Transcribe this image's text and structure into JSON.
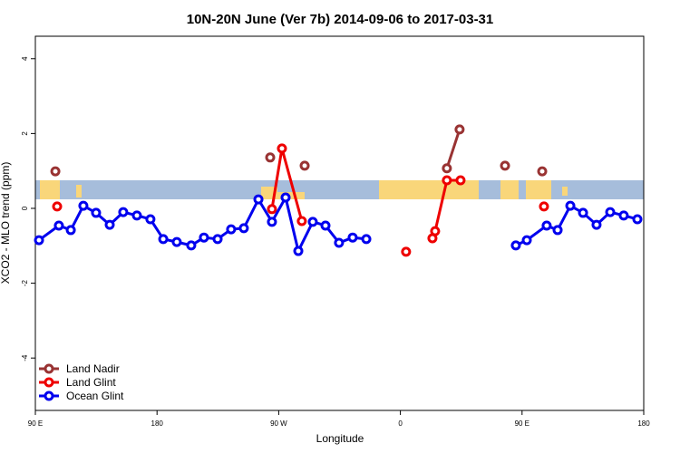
{
  "chart_data": {
    "type": "line",
    "title": "10N-20N June (Ver 7b)   2014-09-06 to 2017-03-31",
    "x_label": "Longitude",
    "y_label": "XCO2 - MLO trend (ppm)",
    "xlim": [
      90,
      540
    ],
    "ylim": [
      -5.4,
      4.6
    ],
    "xticks": [
      {
        "value": 90,
        "label": "90 E"
      },
      180,
      {
        "value": 270,
        "label": "90 W"
      },
      {
        "value": 360,
        "label": "0"
      },
      {
        "value": 450,
        "label": "90 E"
      },
      {
        "value": 540,
        "label": "180"
      }
    ],
    "yticks": [
      -4,
      -2,
      0,
      2,
      4
    ],
    "legend": "bottom-left",
    "series": [
      {
        "name": "Land Nadir",
        "color": "#993333",
        "x": [
          104.8,
          null,
          263.7,
          null,
          289.2,
          null,
          394.4,
          403.8,
          null,
          437.4,
          null,
          464.9
        ],
        "values": [
          0.99,
          null,
          1.36,
          null,
          1.14,
          null,
          1.07,
          2.11,
          null,
          1.14,
          null,
          0.99
        ]
      },
      {
        "name": "Land Glint",
        "color": "#ee0000",
        "x": [
          106.1,
          null,
          265.0,
          272.4,
          287.1,
          null,
          364.2,
          null,
          383.7,
          385.7,
          394.4,
          404.5,
          null,
          466.2
        ],
        "values": [
          0.05,
          null,
          -0.02,
          1.6,
          -0.34,
          null,
          -1.16,
          null,
          -0.8,
          -0.61,
          0.75,
          0.75,
          null,
          0.05
        ]
      },
      {
        "name": "Ocean Glint",
        "color": "#0000ee",
        "x": [
          92.7,
          107.4,
          116.2,
          125.5,
          134.9,
          145.0,
          155.0,
          165.1,
          175.1,
          184.6,
          194.6,
          205.3,
          214.7,
          224.8,
          234.8,
          244.2,
          255.0,
          265.0,
          275.1,
          284.5,
          295.2,
          304.6,
          314.6,
          324.7,
          334.8,
          null,
          445.4,
          453.5,
          468.2,
          476.3,
          485.7,
          495.1,
          505.1,
          515.2,
          525.2,
          535.3
        ],
        "values": [
          -0.85,
          -0.46,
          -0.58,
          0.07,
          -0.12,
          -0.44,
          -0.1,
          -0.19,
          -0.29,
          -0.82,
          -0.9,
          -0.99,
          -0.78,
          -0.82,
          -0.56,
          -0.53,
          0.24,
          -0.36,
          0.29,
          -1.14,
          -0.36,
          -0.46,
          -0.92,
          -0.78,
          -0.82,
          null,
          -0.99,
          -0.85,
          -0.46,
          -0.58,
          0.07,
          -0.12,
          -0.44,
          -0.1,
          -0.19,
          -0.29
        ]
      }
    ]
  }
}
